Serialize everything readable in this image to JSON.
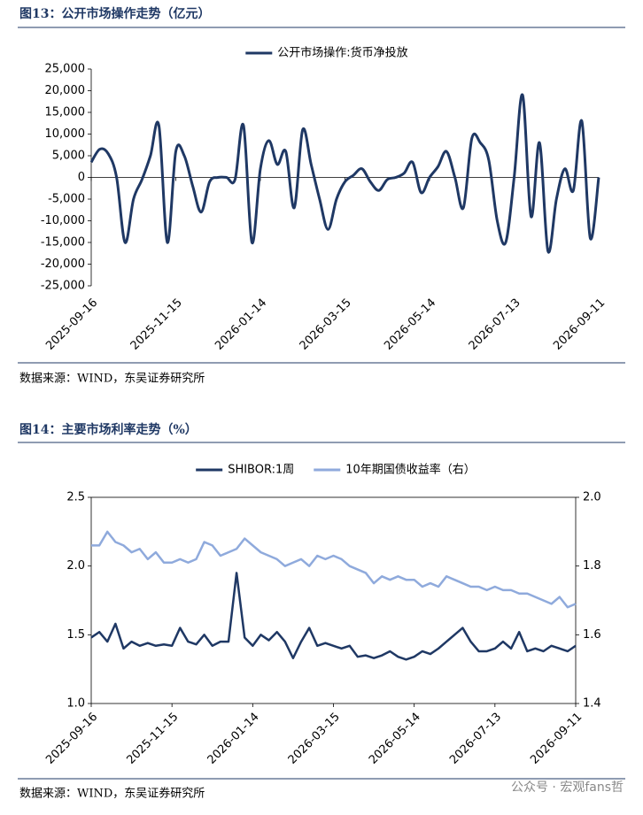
{
  "chart_data": [
    {
      "type": "line",
      "title": "图13：公开市场操作走势（亿元）",
      "source": "数据来源：WIND，东吴证券研究所",
      "legend": "top",
      "smooth": true,
      "categories": [
        "2025-09-16",
        null,
        null,
        null,
        null,
        null,
        null,
        null,
        null,
        null,
        "2025-11-15",
        null,
        null,
        null,
        null,
        null,
        null,
        null,
        null,
        null,
        "2026-01-14",
        null,
        null,
        null,
        null,
        null,
        null,
        null,
        null,
        null,
        "2026-03-15",
        null,
        null,
        null,
        null,
        null,
        null,
        null,
        null,
        null,
        "2026-05-14",
        null,
        null,
        null,
        null,
        null,
        null,
        null,
        null,
        null,
        "2026-07-13",
        null,
        null,
        null,
        null,
        null,
        null,
        null,
        null,
        null,
        "2026-09-11"
      ],
      "series": [
        {
          "name": "公开市场操作:货币净投放",
          "color": "#1f3864",
          "values": [
            3500,
            6500,
            5500,
            0,
            -15000,
            -5000,
            -500,
            5000,
            12000,
            -15000,
            6000,
            5000,
            -2000,
            -8000,
            -1000,
            0,
            0,
            -500,
            12000,
            -15000,
            2000,
            8500,
            3000,
            6000,
            -7000,
            11000,
            3000,
            -5000,
            -12000,
            -5000,
            -1000,
            500,
            2000,
            -1000,
            -3000,
            -500,
            0,
            1000,
            3500,
            -3500,
            0,
            2500,
            6000,
            0,
            -7000,
            9000,
            8000,
            4000,
            -10000,
            -15000,
            0,
            19000,
            -9000,
            8000,
            -17000,
            -5000,
            2000,
            -3000,
            13000,
            -14000,
            0
          ]
        }
      ],
      "ylim": [
        -25000,
        25000
      ],
      "yticks": [
        {
          "value": 25000,
          "label": "25,000"
        },
        {
          "value": 20000,
          "label": "20,000"
        },
        {
          "value": 15000,
          "label": "15,000"
        },
        {
          "value": 10000,
          "label": "10,000"
        },
        {
          "value": 5000,
          "label": "5,000"
        },
        0,
        {
          "value": -5000,
          "label": "-5,000"
        },
        {
          "value": -10000,
          "label": "-10,000"
        },
        {
          "value": -15000,
          "label": "-15,000"
        },
        {
          "value": -20000,
          "label": "-20,000"
        },
        {
          "value": -25000,
          "label": "-25,000"
        }
      ]
    },
    {
      "type": "line",
      "title": "图14：主要市场利率走势（%）",
      "source": "数据来源：WIND，东吴证券研究所",
      "legend": "top",
      "smooth": false,
      "categories": [
        "2025-09-16",
        null,
        null,
        null,
        null,
        null,
        null,
        null,
        null,
        null,
        "2025-11-15",
        null,
        null,
        null,
        null,
        null,
        null,
        null,
        null,
        null,
        "2026-01-14",
        null,
        null,
        null,
        null,
        null,
        null,
        null,
        null,
        null,
        "2026-03-15",
        null,
        null,
        null,
        null,
        null,
        null,
        null,
        null,
        null,
        "2026-05-14",
        null,
        null,
        null,
        null,
        null,
        null,
        null,
        null,
        null,
        "2026-07-13",
        null,
        null,
        null,
        null,
        null,
        null,
        null,
        null,
        null,
        "2026-09-11"
      ],
      "series": [
        {
          "name": "SHIBOR:1周",
          "color": "#1f3864",
          "values": [
            1.48,
            1.52,
            1.45,
            1.58,
            1.4,
            1.45,
            1.42,
            1.44,
            1.42,
            1.43,
            1.42,
            1.55,
            1.45,
            1.43,
            1.5,
            1.42,
            1.45,
            1.45,
            1.95,
            1.48,
            1.42,
            1.5,
            1.46,
            1.52,
            1.45,
            1.33,
            1.45,
            1.55,
            1.42,
            1.44,
            1.42,
            1.4,
            1.42,
            1.34,
            1.35,
            1.33,
            1.35,
            1.38,
            1.34,
            1.32,
            1.34,
            1.38,
            1.36,
            1.4,
            1.45,
            1.5,
            1.55,
            1.45,
            1.38,
            1.38,
            1.4,
            1.45,
            1.4,
            1.52,
            1.38,
            1.4,
            1.38,
            1.42,
            1.4,
            1.38,
            1.42
          ]
        },
        {
          "name": "10年期国债收益率（右）",
          "color": "#8faadc",
          "axis": "y2",
          "values": [
            1.86,
            1.86,
            1.9,
            1.87,
            1.86,
            1.84,
            1.85,
            1.82,
            1.84,
            1.81,
            1.81,
            1.82,
            1.81,
            1.82,
            1.87,
            1.86,
            1.83,
            1.84,
            1.85,
            1.88,
            1.86,
            1.84,
            1.83,
            1.82,
            1.8,
            1.81,
            1.82,
            1.8,
            1.83,
            1.82,
            1.83,
            1.82,
            1.8,
            1.79,
            1.78,
            1.75,
            1.77,
            1.76,
            1.77,
            1.76,
            1.76,
            1.74,
            1.75,
            1.74,
            1.77,
            1.76,
            1.75,
            1.74,
            1.74,
            1.73,
            1.74,
            1.73,
            1.73,
            1.72,
            1.72,
            1.71,
            1.7,
            1.69,
            1.71,
            1.68,
            1.69
          ]
        }
      ],
      "ylim": [
        1.0,
        2.5
      ],
      "yticks": [
        2.5,
        {
          "value": 2,
          "label": "2.0"
        },
        1.5,
        {
          "value": 1,
          "label": "1.0"
        }
      ],
      "y2lim": [
        1.4,
        2.0
      ],
      "y2ticks": [
        {
          "value": 2,
          "label": "2.0"
        },
        1.8,
        1.6,
        1.4
      ]
    }
  ],
  "watermark": "公众号 · 宏观fans哲"
}
